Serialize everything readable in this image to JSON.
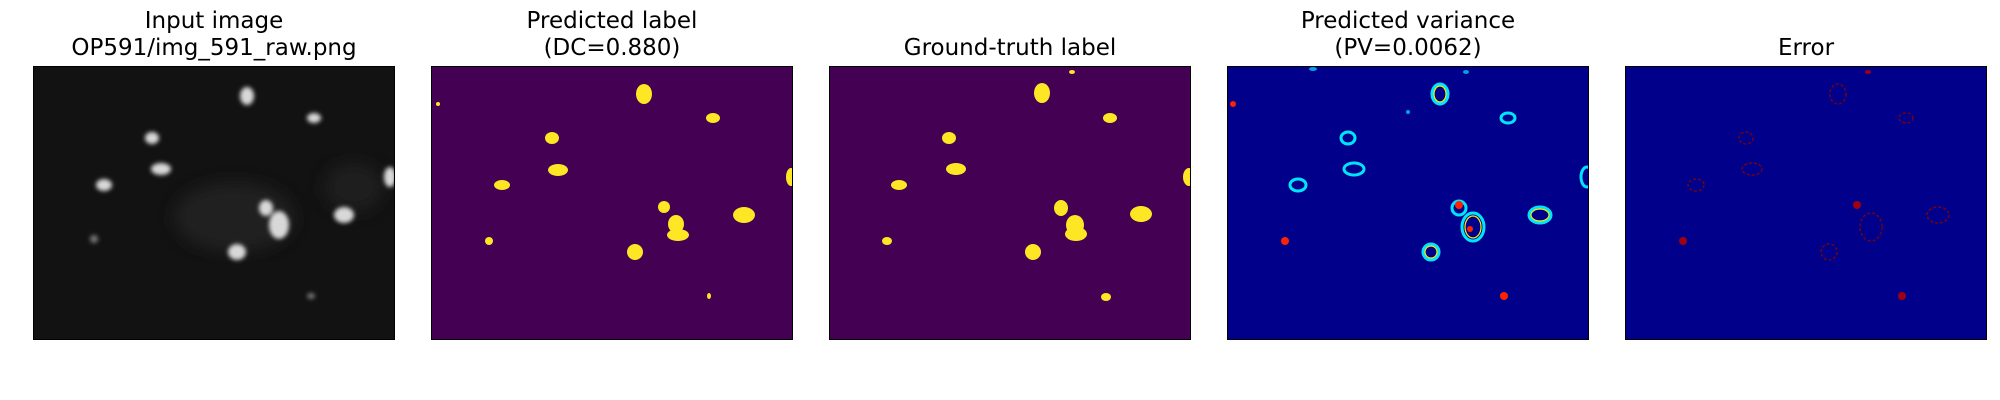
{
  "panels": [
    {
      "name": "input-image",
      "title_line1": "Input image",
      "title_line2": "OP591/img_591_raw.png"
    },
    {
      "name": "predicted-label",
      "title_line1": "Predicted label",
      "title_line2": "(DC=0.880)"
    },
    {
      "name": "ground-truth-label",
      "title_line1": "",
      "title_line2": "Ground-truth label"
    },
    {
      "name": "predicted-variance",
      "title_line1": "Predicted variance",
      "title_line2": "(PV=0.0062)"
    },
    {
      "name": "error",
      "title_line1": "",
      "title_line2": "Error"
    }
  ],
  "colors": {
    "input_background": "#121212",
    "input_cell": "#d8d8d8",
    "label_background": "#440154",
    "label_cell": "#fde725",
    "variance_background": "#00008b",
    "variance_ring_outer": "#00e5ff",
    "variance_ring_inner": "#ff2200",
    "error_background": "#00008b",
    "error_ring": "#7a0010"
  }
}
